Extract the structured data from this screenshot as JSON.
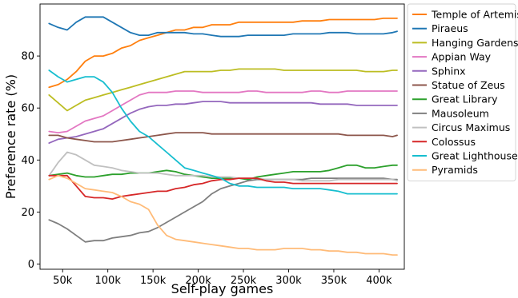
{
  "chart_data": {
    "type": "line",
    "xlabel": "Self-play games",
    "ylabel": "Preference rate (%)",
    "xlim": [
      25000,
      428000
    ],
    "ylim": [
      -2,
      100
    ],
    "x_ticks": [
      50000,
      100000,
      150000,
      200000,
      250000,
      300000,
      350000,
      400000
    ],
    "x_tick_labels": [
      "50k",
      "100k",
      "150k",
      "200k",
      "250k",
      "300k",
      "350k",
      "400k"
    ],
    "y_ticks": [
      0,
      20,
      40,
      60,
      80
    ],
    "y_tick_labels": [
      "0",
      "20",
      "40",
      "60",
      "80"
    ],
    "grid": false,
    "legend_position": "outside-right",
    "x": [
      35000,
      45000,
      55000,
      65000,
      75000,
      85000,
      95000,
      105000,
      115000,
      125000,
      135000,
      145000,
      155000,
      165000,
      175000,
      185000,
      195000,
      205000,
      215000,
      225000,
      235000,
      245000,
      255000,
      265000,
      275000,
      285000,
      295000,
      305000,
      315000,
      325000,
      335000,
      345000,
      355000,
      365000,
      375000,
      385000,
      395000,
      405000,
      415000,
      420000
    ],
    "series": [
      {
        "name": "Temple of Artemis",
        "color": "#ff7f0e",
        "values": [
          68,
          69,
          71,
          74,
          78,
          80,
          80,
          81,
          83,
          84,
          86,
          87,
          88,
          89,
          90,
          90,
          91,
          91,
          92,
          92,
          92,
          93,
          93,
          93,
          93,
          93,
          93,
          93,
          93.5,
          93.5,
          93.5,
          94,
          94,
          94,
          94,
          94,
          94,
          94.5,
          94.5,
          94.5
        ]
      },
      {
        "name": "Piraeus",
        "color": "#1f77b4",
        "values": [
          92.5,
          91,
          90,
          93,
          95,
          95,
          95,
          93,
          91,
          89,
          88,
          88,
          89,
          89,
          89,
          89,
          88.5,
          88.5,
          88,
          87.5,
          87.5,
          87.5,
          88,
          88,
          88,
          88,
          88,
          88.5,
          88.5,
          88.5,
          88.5,
          89,
          89,
          89,
          88.5,
          88.5,
          88.5,
          88.5,
          89,
          89.5
        ]
      },
      {
        "name": "Hanging Gardens",
        "color": "#bcbd22",
        "values": [
          65,
          62,
          59,
          61,
          63,
          64,
          65,
          66,
          67,
          68,
          69,
          70,
          71,
          72,
          73,
          74,
          74,
          74,
          74,
          74.5,
          74.5,
          75,
          75,
          75,
          75,
          75,
          74.5,
          74.5,
          74.5,
          74.5,
          74.5,
          74.5,
          74.5,
          74.5,
          74.5,
          74,
          74,
          74,
          74.5,
          74.5
        ]
      },
      {
        "name": "Appian Way",
        "color": "#e377c2",
        "values": [
          51,
          50.5,
          51,
          53,
          55,
          56,
          57,
          59,
          61,
          63,
          65,
          66,
          66,
          66,
          66.5,
          66.5,
          66.5,
          66,
          66,
          66,
          66,
          66,
          66.5,
          66.5,
          66,
          66,
          66,
          66,
          66,
          66.5,
          66.5,
          66,
          66,
          66.5,
          66.5,
          66.5,
          66.5,
          66.5,
          66.5,
          66.5
        ]
      },
      {
        "name": "Sphinx",
        "color": "#9467bd",
        "values": [
          46.5,
          48,
          48.5,
          49,
          50,
          51,
          52,
          54,
          56,
          58,
          59.5,
          60.5,
          61,
          61,
          61.5,
          61.5,
          62,
          62.5,
          62.5,
          62.5,
          62,
          62,
          62,
          62,
          62,
          62,
          62,
          62,
          62,
          62,
          61.5,
          61.5,
          61.5,
          61.5,
          61,
          61,
          61,
          61,
          61,
          61
        ]
      },
      {
        "name": "Statue of Zeus",
        "color": "#8c564b",
        "values": [
          49.5,
          49.5,
          48.5,
          48,
          47.5,
          47,
          47,
          47,
          47.5,
          48,
          48.5,
          49,
          49.5,
          50,
          50.5,
          50.5,
          50.5,
          50.5,
          50,
          50,
          50,
          50,
          50,
          50,
          50,
          50,
          50,
          50,
          50,
          50,
          50,
          50,
          50,
          49.5,
          49.5,
          49.5,
          49.5,
          49.5,
          49,
          49.5
        ]
      },
      {
        "name": "Great Library",
        "color": "#2ca02c",
        "values": [
          34,
          34.5,
          35,
          34,
          33.5,
          33.5,
          34,
          34.5,
          34.5,
          35,
          35,
          35,
          35.5,
          36,
          35.5,
          34.5,
          34,
          33.5,
          33,
          33,
          33,
          33,
          32.5,
          33.5,
          34,
          34.5,
          35,
          35.5,
          35.5,
          35.5,
          35.5,
          36,
          37,
          38,
          38,
          37,
          37,
          37.5,
          38,
          38
        ]
      },
      {
        "name": "Mausoleum",
        "color": "#7f7f7f",
        "values": [
          17,
          15.5,
          13.5,
          11,
          8.5,
          9,
          9,
          10,
          10.5,
          11,
          12,
          12.5,
          14,
          16,
          18,
          20,
          22,
          24,
          27,
          29,
          30,
          31,
          32,
          32.5,
          32.5,
          32.5,
          32.5,
          32.5,
          32.5,
          33,
          33,
          33,
          33,
          33,
          33,
          33,
          33,
          33,
          32.5,
          32.5
        ]
      },
      {
        "name": "Circus Maximus",
        "color": "#c0c0c0",
        "values": [
          34,
          39,
          43,
          42,
          40,
          38,
          37.5,
          37,
          36,
          35.5,
          35,
          35,
          35,
          34.5,
          34,
          34,
          34,
          34,
          33.5,
          33.5,
          33.5,
          33,
          33,
          33,
          32.5,
          32.5,
          32.5,
          32.5,
          32,
          32,
          32,
          32,
          32.5,
          32.5,
          32.5,
          32.5,
          32.5,
          32.5,
          32.5,
          32
        ]
      },
      {
        "name": "Colossus",
        "color": "#d62728",
        "values": [
          34,
          34,
          34,
          30,
          26,
          25.5,
          25.5,
          25,
          26,
          26.5,
          27,
          27.5,
          28,
          28,
          29,
          29.5,
          30.5,
          31,
          32,
          32.5,
          32.5,
          33,
          33,
          33,
          32,
          31.5,
          31.5,
          31,
          31,
          31,
          31,
          31,
          31,
          31,
          31,
          31,
          31,
          31,
          31,
          31
        ]
      },
      {
        "name": "Great Lighthouse",
        "color": "#17becf",
        "values": [
          74.5,
          72,
          70,
          71,
          72,
          72,
          70,
          66,
          60,
          55,
          51,
          49,
          46,
          43,
          40,
          37,
          36,
          35,
          34,
          33,
          31,
          30,
          30,
          29.5,
          29.5,
          29.5,
          29.5,
          29,
          29,
          29,
          29,
          28.5,
          28,
          27,
          27,
          27,
          27,
          27,
          27,
          27
        ]
      },
      {
        "name": "Pyramids",
        "color": "#ffbb78",
        "values": [
          32.5,
          34,
          33,
          31,
          29,
          28.5,
          28,
          27.5,
          26,
          24,
          23,
          21,
          15,
          11,
          9.5,
          9,
          8.5,
          8,
          7.5,
          7,
          6.5,
          6,
          6,
          5.5,
          5.5,
          5.5,
          6,
          6,
          6,
          5.5,
          5.5,
          5,
          5,
          4.5,
          4.5,
          4,
          4,
          4,
          3.5,
          3.5
        ]
      }
    ]
  }
}
